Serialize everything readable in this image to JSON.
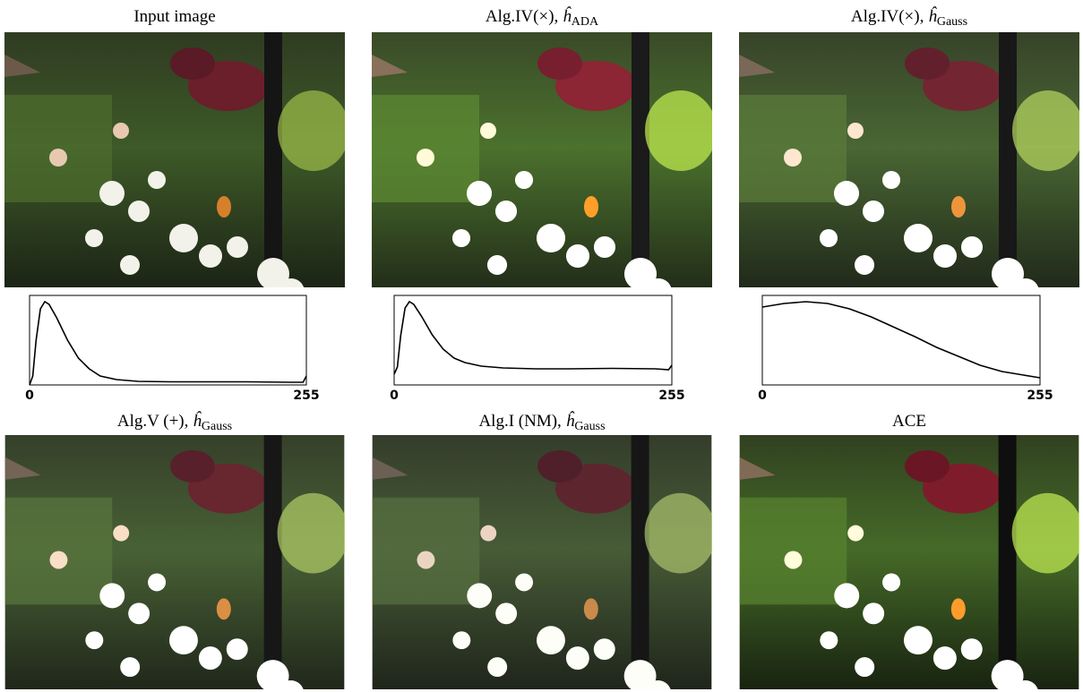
{
  "panels": [
    {
      "title": "Input image"
    },
    {
      "title": "Alg.IV(×),",
      "estimator": "ĥ",
      "subscript": "ADA"
    },
    {
      "title": "Alg.IV(×),",
      "estimator": "ĥ",
      "subscript": "Gauss"
    },
    {
      "title": "Alg.V (+),",
      "estimator": "ĥ",
      "subscript": "Gauss"
    },
    {
      "title": "Alg.I (NM),",
      "estimator": "ĥ",
      "subscript": "Gauss"
    },
    {
      "title": "ACE"
    }
  ],
  "chart_data": [
    {
      "type": "line",
      "x": [
        0,
        3,
        6,
        10,
        14,
        18,
        25,
        35,
        45,
        55,
        65,
        80,
        100,
        130,
        160,
        200,
        240,
        252,
        255
      ],
      "values": [
        0.0,
        0.1,
        0.5,
        0.85,
        0.93,
        0.9,
        0.75,
        0.5,
        0.3,
        0.18,
        0.1,
        0.06,
        0.04,
        0.035,
        0.035,
        0.035,
        0.03,
        0.03,
        0.1
      ],
      "xlim": [
        0,
        255
      ],
      "ylim": [
        0,
        1
      ],
      "xticks": [
        0,
        255
      ],
      "color": "#000000"
    },
    {
      "type": "line",
      "x": [
        0,
        3,
        6,
        10,
        14,
        18,
        25,
        35,
        45,
        55,
        65,
        80,
        100,
        130,
        160,
        200,
        240,
        252,
        255
      ],
      "values": [
        0.12,
        0.2,
        0.55,
        0.86,
        0.93,
        0.9,
        0.77,
        0.56,
        0.4,
        0.3,
        0.25,
        0.21,
        0.19,
        0.18,
        0.18,
        0.185,
        0.18,
        0.17,
        0.22
      ],
      "xlim": [
        0,
        255
      ],
      "ylim": [
        0,
        1
      ],
      "xticks": [
        0,
        255
      ],
      "color": "#000000"
    },
    {
      "type": "line",
      "x": [
        0,
        20,
        40,
        60,
        80,
        100,
        120,
        140,
        160,
        180,
        200,
        220,
        240,
        255
      ],
      "values": [
        0.87,
        0.91,
        0.93,
        0.91,
        0.85,
        0.76,
        0.65,
        0.54,
        0.42,
        0.32,
        0.22,
        0.15,
        0.11,
        0.08
      ],
      "xlim": [
        0,
        255
      ],
      "ylim": [
        0,
        1
      ],
      "xticks": [
        0,
        255
      ],
      "color": "#000000"
    }
  ]
}
